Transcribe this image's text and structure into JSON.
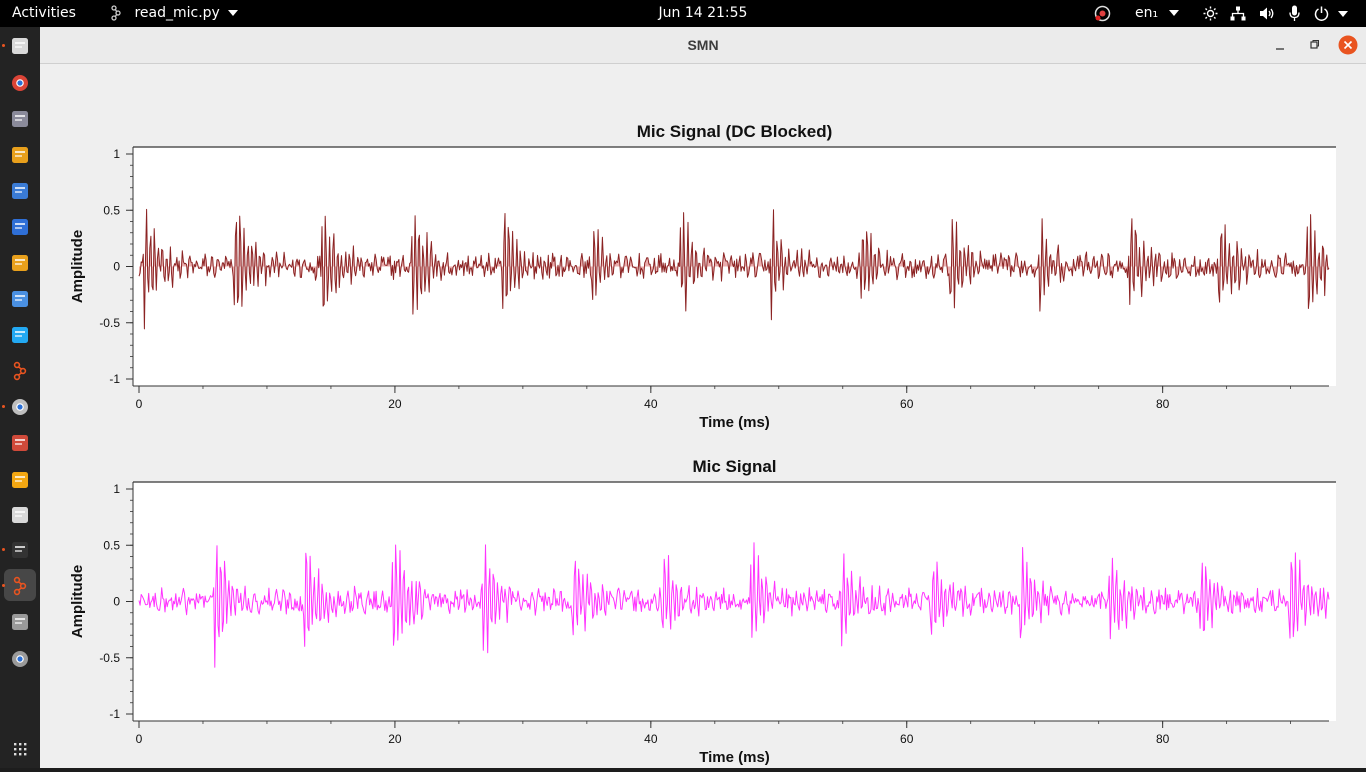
{
  "topbar": {
    "activities_label": "Activities",
    "app_menu_label": "read_mic.py",
    "datetime": "Jun 14  21:55",
    "language": "en₁"
  },
  "window": {
    "title": "SMN"
  },
  "dock": {
    "items": [
      {
        "name": "files-icon",
        "color": "#d9d9d9"
      },
      {
        "name": "chrome-icon",
        "color": "#db4437"
      },
      {
        "name": "system-monitor-icon",
        "color": "#8a8a9a"
      },
      {
        "name": "archive-icon",
        "color": "#e8a01c"
      },
      {
        "name": "calendar-icon",
        "color": "#3a7bd5"
      },
      {
        "name": "document-icon",
        "color": "#2f6fd6"
      },
      {
        "name": "slides-icon",
        "color": "#e8a01c"
      },
      {
        "name": "text-editor-icon",
        "color": "#4a90e2"
      },
      {
        "name": "vscode-icon",
        "color": "#23a9f2"
      },
      {
        "name": "gnuradio-icon",
        "color": "#e95420"
      },
      {
        "name": "disk-utility-icon",
        "color": "#bfbfbf"
      },
      {
        "name": "pdf-viewer-icon",
        "color": "#d04a3a"
      },
      {
        "name": "eclipse-icon",
        "color": "#f3a712"
      },
      {
        "name": "flowgraph-icon",
        "color": "#d9d9d9"
      },
      {
        "name": "terminal-icon",
        "color": "#333333"
      },
      {
        "name": "gnuradio-active-icon",
        "color": "#e95420"
      },
      {
        "name": "usb-drive-icon",
        "color": "#9a9a9a"
      },
      {
        "name": "disc-icon",
        "color": "#9a9a9a"
      },
      {
        "name": "show-apps-icon",
        "color": "#dddddd"
      }
    ]
  },
  "chart_data": [
    {
      "type": "line",
      "title": "Mic Signal (DC Blocked)",
      "xlabel": "Time (ms)",
      "ylabel": "Amplitude",
      "xlim": [
        0,
        93
      ],
      "ylim": [
        -1,
        1
      ],
      "xticks": [
        "0",
        "20",
        "40",
        "60",
        "80"
      ],
      "yticks": [
        "1",
        "0.5",
        "0",
        "-0.5",
        "-1"
      ],
      "grid": false,
      "color": "#8b2323",
      "fill": "#e8a0a0",
      "burst_times_ms": [
        0.5,
        7.5,
        14.5,
        21.5,
        28.5,
        35.5,
        42.5,
        49.5,
        56.5,
        63.5,
        70.5,
        77.5,
        84.5,
        91.5
      ],
      "burst_peaks": [
        0.55,
        0.62,
        0.55,
        0.55,
        0.57,
        0.45,
        0.48,
        0.45,
        0.45,
        0.48,
        0.4,
        0.48,
        0.48,
        0.53
      ],
      "burst_troughs": [
        -0.45,
        -0.48,
        -0.45,
        -0.45,
        -0.48,
        -0.33,
        -0.35,
        -0.37,
        -0.37,
        -0.35,
        -0.33,
        -0.37,
        -0.37,
        -0.42
      ],
      "noise_level": 0.1
    },
    {
      "type": "line",
      "title": "Mic Signal",
      "xlabel": "Time (ms)",
      "ylabel": "Amplitude",
      "xlim": [
        0,
        93
      ],
      "ylim": [
        -1,
        1
      ],
      "xticks": [
        "0",
        "20",
        "40",
        "60",
        "80"
      ],
      "yticks": [
        "1",
        "0.5",
        "0",
        "-0.5",
        "-1"
      ],
      "grid": false,
      "color": "#ff33ff",
      "fill": "",
      "burst_times_ms": [
        6.0,
        13.0,
        20.0,
        27.0,
        34.0,
        41.0,
        48.0,
        55.0,
        62.0,
        69.0,
        76.0,
        83.0,
        90.0
      ],
      "burst_peaks": [
        0.63,
        0.58,
        0.57,
        0.57,
        0.45,
        0.5,
        0.5,
        0.45,
        0.45,
        0.45,
        0.47,
        0.48,
        0.55
      ],
      "burst_troughs": [
        -0.48,
        -0.42,
        -0.45,
        -0.48,
        -0.33,
        -0.35,
        -0.37,
        -0.37,
        -0.35,
        -0.33,
        -0.37,
        -0.35,
        -0.4
      ],
      "noise_level": 0.1
    }
  ]
}
